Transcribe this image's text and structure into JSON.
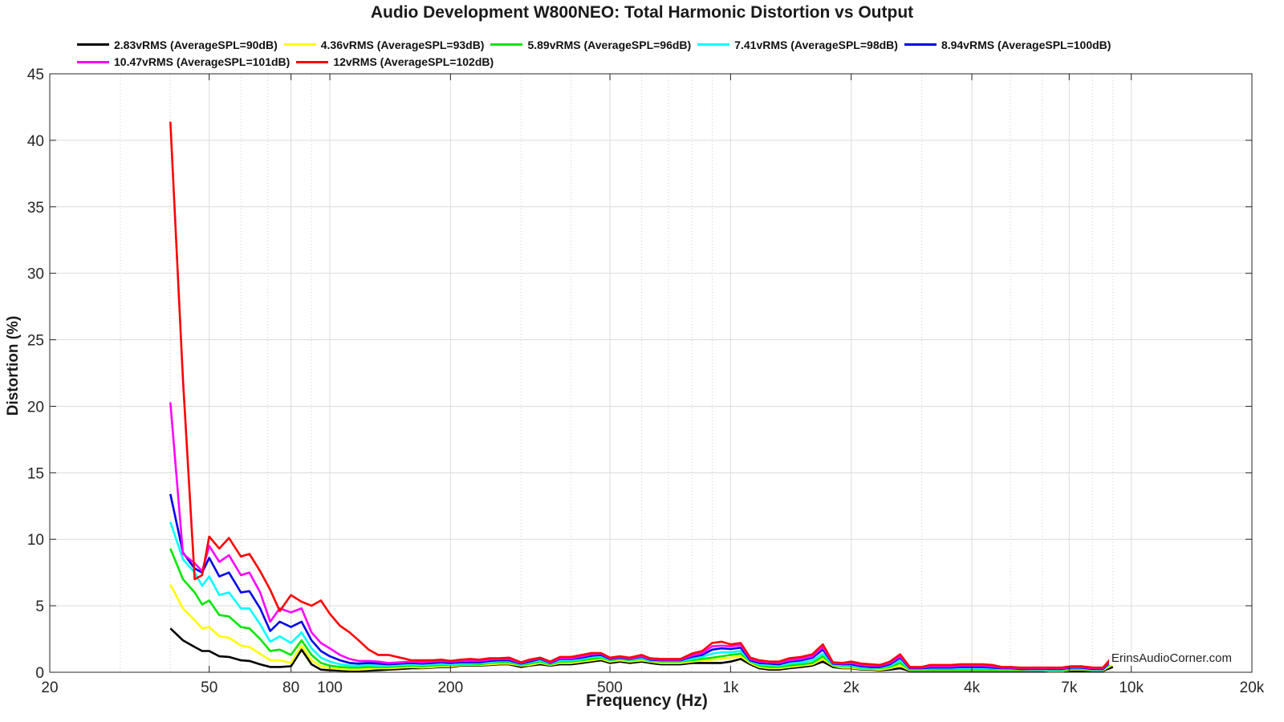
{
  "chart_data": {
    "type": "line",
    "title": "Audio Development W800NEO: Total Harmonic Distortion vs Output",
    "xlabel": "Frequency (Hz)",
    "ylabel": "Distortion (%)",
    "xscale": "log",
    "xlim": [
      20,
      20000
    ],
    "ylim": [
      0,
      45
    ],
    "grid": true,
    "legend_position": "top",
    "watermark": "ErinsAudioCorner.com",
    "x_ticks": [
      20,
      50,
      80,
      100,
      200,
      500,
      1000,
      2000,
      4000,
      7000,
      10000,
      20000
    ],
    "x_tick_labels": [
      "20",
      "50",
      "80",
      "100",
      "200",
      "500",
      "1k",
      "2k",
      "4k",
      "7k",
      "10k",
      "20k"
    ],
    "y_ticks": [
      0,
      5,
      10,
      15,
      20,
      25,
      30,
      35,
      40,
      45
    ],
    "y_tick_labels": [
      "0",
      "5",
      "10",
      "15",
      "20",
      "25",
      "30",
      "35",
      "40",
      "45"
    ],
    "x": [
      40,
      43,
      46,
      48,
      50,
      53,
      56,
      60,
      63,
      67,
      71,
      75,
      80,
      85,
      90,
      95,
      100,
      106,
      112,
      118,
      125,
      132,
      140,
      150,
      160,
      170,
      180,
      190,
      200,
      212,
      224,
      236,
      250,
      265,
      280,
      300,
      315,
      335,
      355,
      375,
      400,
      425,
      450,
      475,
      500,
      530,
      560,
      600,
      630,
      670,
      710,
      750,
      800,
      850,
      900,
      950,
      1000,
      1060,
      1120,
      1180,
      1250,
      1320,
      1400,
      1500,
      1600,
      1700,
      1800,
      1900,
      2000,
      2120,
      2240,
      2360,
      2500,
      2650,
      2800,
      3000,
      3150,
      3350,
      3550,
      3750,
      4000,
      4250,
      4500,
      4750,
      5000,
      5300,
      5600,
      6000,
      6300,
      6700,
      7100,
      7500,
      8000,
      8500,
      9000
    ],
    "series": [
      {
        "name": "2.83vRMS (AverageSPL=90dB)",
        "color": "#000000",
        "values": [
          3.3,
          2.4,
          1.9,
          1.6,
          1.6,
          1.2,
          1.15,
          0.9,
          0.85,
          0.6,
          0.4,
          0.4,
          0.45,
          1.7,
          0.6,
          0.2,
          0.15,
          0.12,
          0.1,
          0.1,
          0.12,
          0.15,
          0.2,
          0.25,
          0.3,
          0.3,
          0.35,
          0.4,
          0.4,
          0.5,
          0.5,
          0.5,
          0.55,
          0.6,
          0.6,
          0.4,
          0.5,
          0.6,
          0.5,
          0.6,
          0.6,
          0.7,
          0.8,
          0.9,
          0.7,
          0.8,
          0.7,
          0.8,
          0.7,
          0.6,
          0.6,
          0.6,
          0.7,
          0.7,
          0.7,
          0.7,
          0.8,
          1.0,
          0.6,
          0.3,
          0.2,
          0.2,
          0.3,
          0.4,
          0.5,
          0.8,
          0.4,
          0.3,
          0.3,
          0.2,
          0.2,
          0.15,
          0.2,
          0.3,
          0.1,
          0.1,
          0.1,
          0.1,
          0.1,
          0.1,
          0.1,
          0.1,
          0.1,
          0.1,
          0.1,
          0.1,
          0.1,
          0.1,
          0.1,
          0.1,
          0.1,
          0.1,
          0.1,
          0.1,
          0.4
        ]
      },
      {
        "name": "4.36vRMS (AverageSPL=93dB)",
        "color": "#ffff00",
        "values": [
          6.6,
          4.8,
          3.9,
          3.3,
          3.4,
          2.7,
          2.6,
          2.0,
          1.9,
          1.4,
          0.9,
          0.9,
          0.7,
          2.0,
          0.9,
          0.45,
          0.3,
          0.25,
          0.2,
          0.2,
          0.25,
          0.3,
          0.3,
          0.35,
          0.4,
          0.35,
          0.4,
          0.45,
          0.45,
          0.55,
          0.55,
          0.55,
          0.6,
          0.65,
          0.65,
          0.5,
          0.55,
          0.7,
          0.55,
          0.7,
          0.7,
          0.8,
          0.9,
          1.0,
          0.8,
          0.9,
          0.8,
          0.9,
          0.8,
          0.7,
          0.7,
          0.7,
          0.8,
          0.9,
          0.95,
          1.0,
          1.1,
          1.2,
          0.7,
          0.4,
          0.3,
          0.3,
          0.4,
          0.5,
          0.6,
          1.0,
          0.5,
          0.35,
          0.35,
          0.25,
          0.25,
          0.2,
          0.3,
          0.5,
          0.15,
          0.15,
          0.15,
          0.15,
          0.15,
          0.15,
          0.15,
          0.15,
          0.15,
          0.15,
          0.15,
          0.15,
          0.15,
          0.15,
          0.1,
          0.1,
          0.2,
          0.2,
          0.15,
          0.15,
          0.6
        ]
      },
      {
        "name": "5.89vRMS (AverageSPL=96dB)",
        "color": "#00e600",
        "values": [
          9.3,
          7.0,
          6.0,
          5.1,
          5.4,
          4.3,
          4.2,
          3.4,
          3.3,
          2.5,
          1.6,
          1.7,
          1.3,
          2.4,
          1.3,
          0.7,
          0.5,
          0.4,
          0.35,
          0.35,
          0.4,
          0.4,
          0.4,
          0.45,
          0.5,
          0.45,
          0.5,
          0.55,
          0.55,
          0.6,
          0.6,
          0.6,
          0.7,
          0.75,
          0.75,
          0.55,
          0.65,
          0.8,
          0.6,
          0.8,
          0.8,
          0.9,
          1.0,
          1.1,
          0.9,
          1.0,
          0.9,
          1.0,
          0.85,
          0.8,
          0.8,
          0.8,
          0.9,
          1.0,
          1.1,
          1.2,
          1.3,
          1.4,
          0.8,
          0.5,
          0.4,
          0.4,
          0.5,
          0.6,
          0.7,
          1.2,
          0.55,
          0.45,
          0.45,
          0.3,
          0.3,
          0.3,
          0.4,
          0.7,
          0.2,
          0.2,
          0.2,
          0.2,
          0.2,
          0.2,
          0.2,
          0.2,
          0.2,
          0.2,
          0.2,
          0.2,
          0.2,
          0.2,
          0.15,
          0.15,
          0.25,
          0.25,
          0.2,
          0.2,
          0.8
        ]
      },
      {
        "name": "7.41vRMS (AverageSPL=98dB)",
        "color": "#00ffff",
        "values": [
          11.3,
          8.5,
          7.5,
          6.5,
          7.2,
          5.8,
          6.0,
          4.8,
          4.8,
          3.6,
          2.3,
          2.7,
          2.2,
          3.0,
          1.8,
          1.1,
          0.8,
          0.6,
          0.5,
          0.5,
          0.55,
          0.5,
          0.5,
          0.55,
          0.6,
          0.55,
          0.6,
          0.65,
          0.6,
          0.65,
          0.65,
          0.7,
          0.75,
          0.85,
          0.85,
          0.6,
          0.75,
          0.9,
          0.65,
          0.9,
          0.9,
          1.0,
          1.15,
          1.2,
          0.95,
          1.05,
          0.95,
          1.05,
          0.9,
          0.85,
          0.85,
          0.85,
          1.0,
          1.15,
          1.4,
          1.5,
          1.5,
          1.6,
          0.85,
          0.6,
          0.55,
          0.5,
          0.65,
          0.75,
          0.9,
          1.4,
          0.6,
          0.5,
          0.5,
          0.35,
          0.35,
          0.35,
          0.5,
          0.9,
          0.25,
          0.25,
          0.3,
          0.3,
          0.3,
          0.3,
          0.3,
          0.3,
          0.3,
          0.25,
          0.25,
          0.25,
          0.2,
          0.2,
          0.2,
          0.2,
          0.3,
          0.3,
          0.2,
          0.2,
          0.9
        ]
      },
      {
        "name": "8.94vRMS (AverageSPL=100dB)",
        "color": "#0000ee",
        "values": [
          13.4,
          9.0,
          7.8,
          7.5,
          8.6,
          7.2,
          7.5,
          6.0,
          6.1,
          4.8,
          3.1,
          3.8,
          3.4,
          3.8,
          2.4,
          1.6,
          1.2,
          0.9,
          0.7,
          0.65,
          0.7,
          0.65,
          0.6,
          0.65,
          0.7,
          0.65,
          0.7,
          0.75,
          0.7,
          0.75,
          0.75,
          0.75,
          0.85,
          0.9,
          0.9,
          0.65,
          0.8,
          1.0,
          0.7,
          1.0,
          1.0,
          1.1,
          1.25,
          1.3,
          1.0,
          1.1,
          1.0,
          1.15,
          0.95,
          0.9,
          0.9,
          0.9,
          1.15,
          1.3,
          1.7,
          1.8,
          1.75,
          1.85,
          0.9,
          0.7,
          0.65,
          0.6,
          0.8,
          0.9,
          1.1,
          1.7,
          0.65,
          0.6,
          0.6,
          0.45,
          0.4,
          0.4,
          0.6,
          1.1,
          0.3,
          0.3,
          0.35,
          0.35,
          0.35,
          0.4,
          0.4,
          0.4,
          0.35,
          0.3,
          0.3,
          0.25,
          0.25,
          0.25,
          0.25,
          0.25,
          0.35,
          0.35,
          0.25,
          0.25,
          1.0
        ]
      },
      {
        "name": "10.47vRMS (AverageSPL=101dB)",
        "color": "#ff00ff",
        "values": [
          20.3,
          8.9,
          8.2,
          7.6,
          9.5,
          8.3,
          8.8,
          7.3,
          7.5,
          6.0,
          3.8,
          4.8,
          4.5,
          4.8,
          3.0,
          2.2,
          1.8,
          1.3,
          1.0,
          0.85,
          0.85,
          0.8,
          0.7,
          0.75,
          0.8,
          0.75,
          0.8,
          0.85,
          0.8,
          0.85,
          0.85,
          0.85,
          0.95,
          1.0,
          1.0,
          0.7,
          0.9,
          1.05,
          0.75,
          1.05,
          1.05,
          1.2,
          1.35,
          1.4,
          1.05,
          1.15,
          1.05,
          1.2,
          1.0,
          0.95,
          0.95,
          0.95,
          1.25,
          1.45,
          1.95,
          2.0,
          1.95,
          2.05,
          1.0,
          0.8,
          0.75,
          0.7,
          0.9,
          1.0,
          1.2,
          1.9,
          0.7,
          0.65,
          0.7,
          0.55,
          0.5,
          0.5,
          0.7,
          1.2,
          0.35,
          0.35,
          0.45,
          0.45,
          0.45,
          0.5,
          0.5,
          0.5,
          0.45,
          0.35,
          0.35,
          0.3,
          0.3,
          0.3,
          0.3,
          0.3,
          0.4,
          0.4,
          0.3,
          0.3,
          1.1
        ]
      },
      {
        "name": "12vRMS (AverageSPL=102dB)",
        "color": "#ff0000",
        "values": [
          41.4,
          22.0,
          7.0,
          7.3,
          10.2,
          9.3,
          10.1,
          8.7,
          8.9,
          7.6,
          6.2,
          4.6,
          5.8,
          5.3,
          5.0,
          5.4,
          4.4,
          3.5,
          3.0,
          2.4,
          1.7,
          1.3,
          1.3,
          1.1,
          0.9,
          0.9,
          0.9,
          0.95,
          0.85,
          0.95,
          1.0,
          0.95,
          1.05,
          1.05,
          1.1,
          0.75,
          0.95,
          1.1,
          0.8,
          1.15,
          1.15,
          1.3,
          1.45,
          1.45,
          1.1,
          1.2,
          1.1,
          1.3,
          1.05,
          1.0,
          1.0,
          1.0,
          1.4,
          1.6,
          2.2,
          2.3,
          2.1,
          2.2,
          1.1,
          0.9,
          0.8,
          0.8,
          1.05,
          1.15,
          1.35,
          2.1,
          0.75,
          0.7,
          0.8,
          0.65,
          0.6,
          0.55,
          0.8,
          1.35,
          0.4,
          0.4,
          0.55,
          0.55,
          0.55,
          0.6,
          0.6,
          0.6,
          0.55,
          0.4,
          0.4,
          0.35,
          0.35,
          0.35,
          0.35,
          0.35,
          0.45,
          0.45,
          0.35,
          0.35,
          1.2
        ]
      }
    ]
  }
}
